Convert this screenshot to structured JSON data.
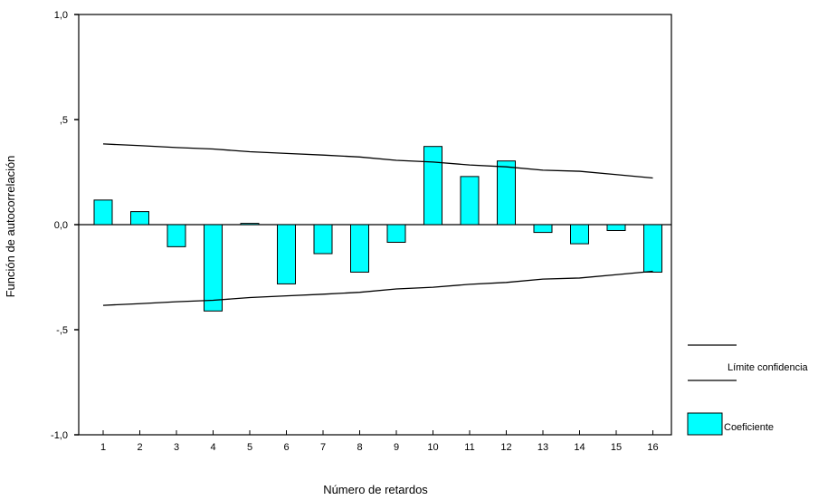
{
  "chart_data": {
    "type": "bar",
    "xlabel": "Número de retardos",
    "ylabel": "Función de autocorrelación",
    "ylim": [
      -1.0,
      1.0
    ],
    "y_ticks": [
      {
        "value": 1.0,
        "label": "1,0"
      },
      {
        "value": 0.5,
        "label": ",5"
      },
      {
        "value": 0.0,
        "label": "0,0"
      },
      {
        "value": -0.5,
        "label": "-,5"
      },
      {
        "value": -1.0,
        "label": "-1,0"
      }
    ],
    "categories": [
      "1",
      "2",
      "3",
      "4",
      "5",
      "6",
      "7",
      "8",
      "9",
      "10",
      "11",
      "12",
      "13",
      "14",
      "15",
      "16"
    ],
    "series": [
      {
        "name": "Coeficiente",
        "kind": "bar",
        "color": "#00FFFF",
        "values": [
          0.117,
          0.062,
          -0.105,
          -0.411,
          0.006,
          -0.282,
          -0.138,
          -0.226,
          -0.084,
          0.372,
          0.229,
          0.303,
          -0.037,
          -0.091,
          -0.028,
          -0.226
        ]
      },
      {
        "name": "Límite confidencia",
        "kind": "line",
        "color": "#000000",
        "upper": [
          0.384,
          0.376,
          0.367,
          0.36,
          0.347,
          0.339,
          0.331,
          0.322,
          0.306,
          0.298,
          0.284,
          0.275,
          0.259,
          0.254,
          0.238,
          0.222
        ],
        "lower": [
          -0.384,
          -0.376,
          -0.367,
          -0.36,
          -0.347,
          -0.339,
          -0.331,
          -0.322,
          -0.306,
          -0.298,
          -0.284,
          -0.275,
          -0.259,
          -0.254,
          -0.238,
          -0.222
        ]
      }
    ],
    "legend_position": "right",
    "grid": false
  }
}
